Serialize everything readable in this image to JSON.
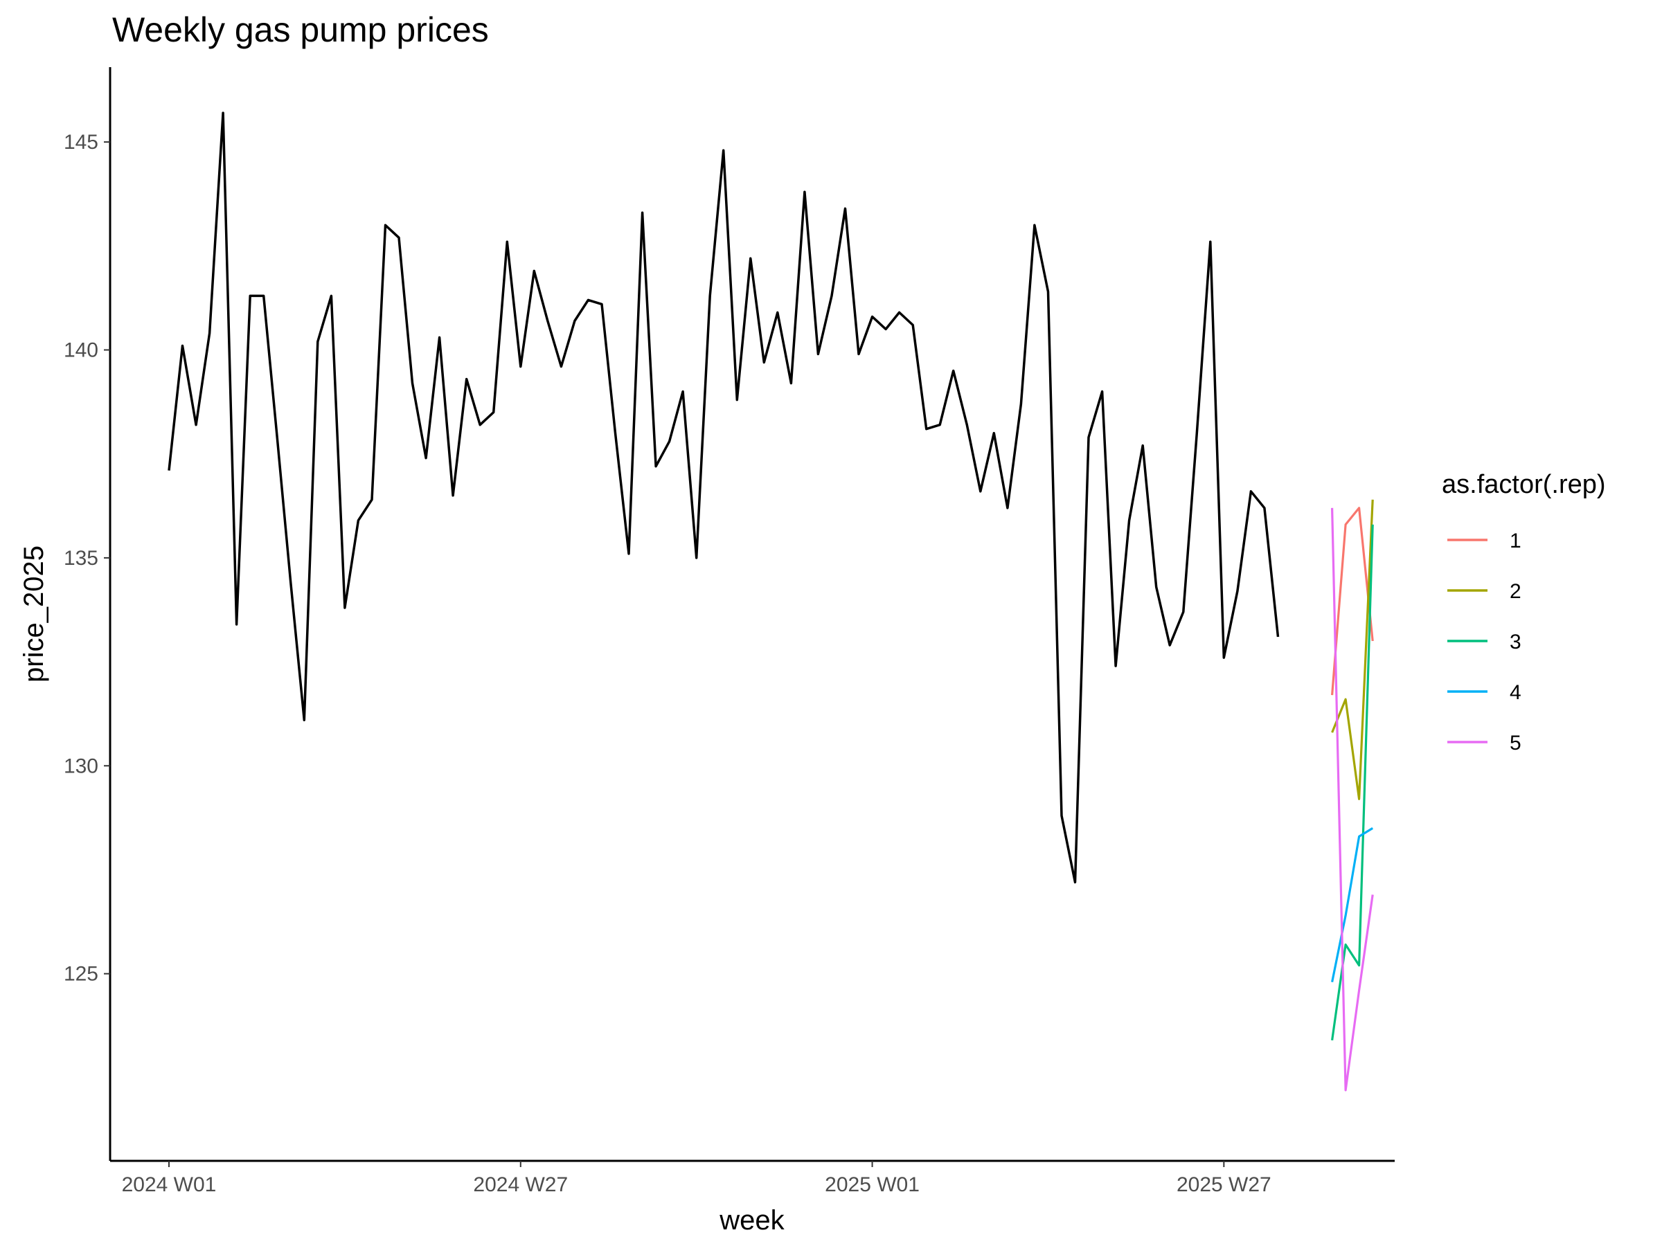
{
  "chart_data": {
    "type": "line",
    "title": "Weekly gas pump prices",
    "xlabel": "week",
    "ylabel": "price_2025",
    "x_ticks": [
      "2024 W01",
      "2024 W27",
      "2025 W01",
      "2025 W27"
    ],
    "y_ticks": [
      125,
      130,
      135,
      140,
      145
    ],
    "ylim": [
      120.5,
      146.8
    ],
    "grid": false,
    "legend": {
      "title": "as.factor(.rep)",
      "placement": "right"
    },
    "series": [
      {
        "name": "",
        "color": "#000000",
        "x_start": "2024 W01",
        "values": [
          137.1,
          140.1,
          138.2,
          140.4,
          145.7,
          133.4,
          141.3,
          141.3,
          137.9,
          134.4,
          131.1,
          140.2,
          141.3,
          133.8,
          135.9,
          136.4,
          143.0,
          142.7,
          139.2,
          137.4,
          140.3,
          136.5,
          139.3,
          138.2,
          138.5,
          142.6,
          139.6,
          141.9,
          140.7,
          139.6,
          140.7,
          141.2,
          141.1,
          138.0,
          135.1,
          143.3,
          137.2,
          137.8,
          139.0,
          135.0,
          141.3,
          144.8,
          138.8,
          142.2,
          139.7,
          140.9,
          139.2,
          143.8,
          139.9,
          141.3,
          143.4,
          139.9,
          140.8,
          140.5,
          140.9,
          140.6,
          138.1,
          138.2,
          139.5,
          138.2,
          136.6,
          138.0,
          136.2,
          138.7,
          143.0,
          141.4,
          128.8,
          127.2,
          137.9,
          139.0,
          132.4,
          135.9,
          137.7,
          134.3,
          132.9,
          133.7,
          138.0,
          142.6,
          132.6,
          134.2,
          136.6,
          136.2,
          133.1
        ]
      },
      {
        "name": "1",
        "color": "#F8766D",
        "x_start": "2025 W35",
        "values": [
          131.7,
          135.8,
          136.2,
          133.0
        ]
      },
      {
        "name": "2",
        "color": "#A3A500",
        "x_start": "2025 W35",
        "values": [
          130.8,
          131.6,
          129.2,
          136.4
        ]
      },
      {
        "name": "3",
        "color": "#00BF7D",
        "x_start": "2025 W35",
        "values": [
          123.4,
          125.7,
          125.2,
          135.8
        ]
      },
      {
        "name": "4",
        "color": "#00B0F6",
        "x_start": "2025 W35",
        "values": [
          124.8,
          126.4,
          128.3,
          128.5
        ]
      },
      {
        "name": "5",
        "color": "#E76BF3",
        "x_start": "2025 W35",
        "values": [
          136.2,
          122.2,
          124.6,
          126.9
        ]
      }
    ]
  }
}
